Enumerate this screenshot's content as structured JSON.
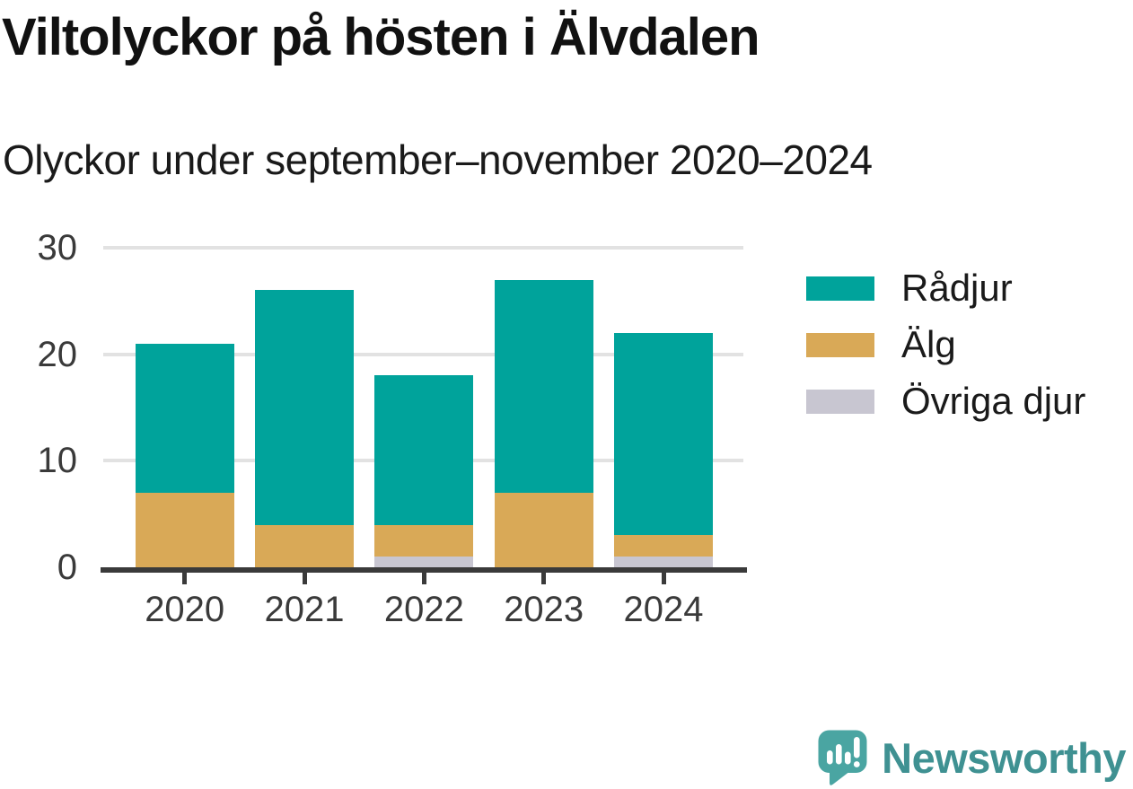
{
  "header": {
    "title": "Viltolyckor på hösten i Älvdalen",
    "subtitle": "Olyckor under september–november 2020–2024"
  },
  "chart_data": {
    "type": "bar",
    "stacked": true,
    "title": "Viltolyckor på hösten i Älvdalen",
    "subtitle": "Olyckor under september–november 2020–2024",
    "categories": [
      "2020",
      "2021",
      "2022",
      "2023",
      "2024"
    ],
    "series": [
      {
        "name": "Rådjur",
        "color": "#00a39b",
        "values": [
          14,
          22,
          14,
          20,
          19
        ]
      },
      {
        "name": "Älg",
        "color": "#d9a957",
        "values": [
          7,
          4,
          3,
          7,
          2
        ]
      },
      {
        "name": "Övriga djur",
        "color": "#c8c6d1",
        "values": [
          0,
          0,
          1,
          0,
          1
        ]
      }
    ],
    "totals": [
      21,
      26,
      18,
      27,
      22
    ],
    "xlabel": "",
    "ylabel": "",
    "ylim": [
      0,
      30
    ],
    "yticks": [
      0,
      10,
      20,
      30
    ],
    "grid": "horizontal",
    "legend_position": "right"
  },
  "axis": {
    "tick_color": "#3a3a3a",
    "grid_color": "#e2e2e2",
    "baseline_color": "#3a3a3a"
  },
  "footer": {
    "brand": "Newsworthy",
    "logo_icon": "newsworthy-chart-bubble-icon",
    "brand_color": "#3f9192",
    "logo_mark_color": "#4aa5a2"
  }
}
